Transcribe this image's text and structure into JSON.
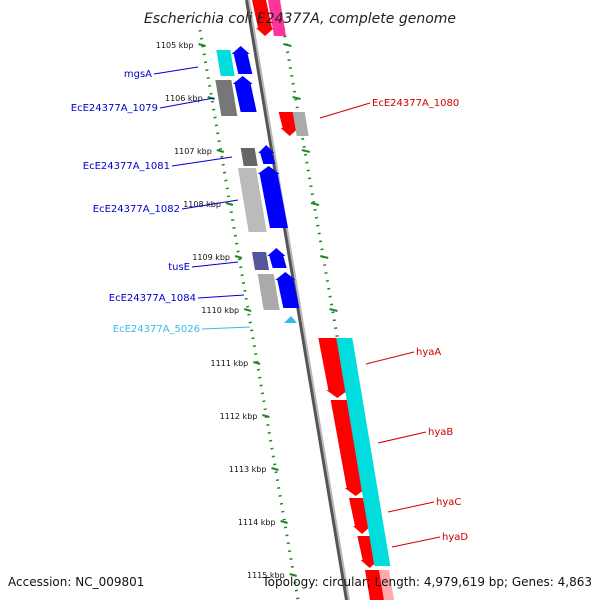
{
  "title": "Escherichia coli E24377A, complete genome",
  "accession": "Accession: NC_009801",
  "summary": "Topology: circular; Length: 4,979,619 bp; Genes: 4,863",
  "ticks": [
    "1105 kbp",
    "1106 kbp",
    "1107 kbp",
    "1108 kbp",
    "1109 kbp",
    "1110 kbp",
    "1111 kbp",
    "1112 kbp",
    "1113 kbp",
    "1114 kbp",
    "1115 kbp"
  ],
  "colors": {
    "forward_label": "#0000cc",
    "reverse_label": "#cc0000",
    "rna_label": "#33bbee",
    "red": "#ff0000",
    "blue": "#0000ff",
    "cyan": "#00dddd",
    "grey": "#999999",
    "pink": "#ff3399",
    "tick_green": "#228822"
  },
  "labels": [
    {
      "text": "mgsA",
      "side": "left",
      "color": "forward"
    },
    {
      "text": "EcE24377A_1079",
      "side": "left",
      "color": "forward"
    },
    {
      "text": "EcE24377A_1081",
      "side": "left",
      "color": "forward"
    },
    {
      "text": "EcE24377A_1082",
      "side": "left",
      "color": "forward"
    },
    {
      "text": "tusE",
      "side": "left",
      "color": "forward"
    },
    {
      "text": "EcE24377A_1084",
      "side": "left",
      "color": "forward"
    },
    {
      "text": "EcE24377A_5026",
      "side": "left",
      "color": "rna"
    },
    {
      "text": "EcE24377A_1080",
      "side": "right",
      "color": "reverse"
    },
    {
      "text": "hyaA",
      "side": "right",
      "color": "reverse"
    },
    {
      "text": "hyaB",
      "side": "right",
      "color": "reverse"
    },
    {
      "text": "hyaC",
      "side": "right",
      "color": "reverse"
    },
    {
      "text": "hyaD",
      "side": "right",
      "color": "reverse"
    }
  ]
}
